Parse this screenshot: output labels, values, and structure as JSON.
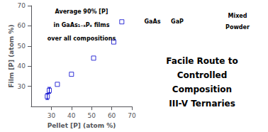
{
  "chart_data": {
    "type": "scatter",
    "xlabel": "Pellet [P] (atom %)",
    "ylabel": "Film [P] (atom %)",
    "annotations": [
      "Average 90% [P]",
      "in GaAs₁₋ₓPₓ films",
      "over all compositions"
    ],
    "x": [
      28,
      29,
      33,
      40,
      51,
      61,
      65
    ],
    "series": [
      {
        "values": [
          25,
          28,
          31,
          36,
          44,
          52,
          62
        ],
        "error": [
          1.5,
          1.5,
          null,
          null,
          null,
          null,
          null
        ],
        "color": "#0000CD",
        "marker": "square"
      }
    ],
    "xlim": [
      20,
      70
    ],
    "ylim": [
      20,
      70
    ],
    "xticks": [
      30,
      40,
      50,
      60,
      70
    ],
    "yticks": [
      30,
      40,
      50,
      60,
      70
    ],
    "grid": false,
    "panel_labels": [
      "GaAs",
      "GaP",
      "Mixed",
      "Powder"
    ],
    "panel_text": [
      "Facile Route to",
      "Controlled",
      "Composition",
      "III-V Ternaries"
    ]
  }
}
